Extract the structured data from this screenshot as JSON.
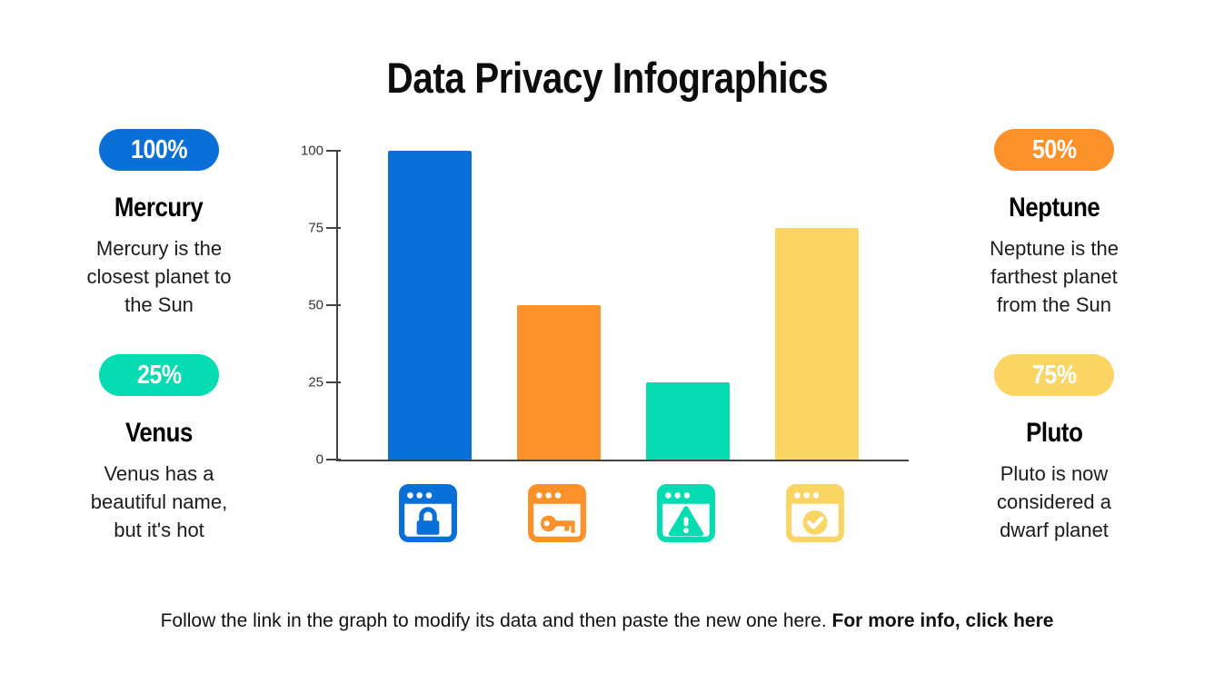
{
  "slide": {
    "title": "Data Privacy Infographics",
    "background": "#ffffff"
  },
  "stats": [
    {
      "percent": "100%",
      "pill_color": "#0a70d8",
      "name": "Mercury",
      "description": "Mercury is the closest planet to the Sun"
    },
    {
      "percent": "25%",
      "pill_color": "#06dcb2",
      "name": "Venus",
      "description": "Venus has a beautiful name, but it's hot"
    },
    {
      "percent": "50%",
      "pill_color": "#fb9129",
      "name": "Neptune",
      "description": "Neptune is the farthest planet from the Sun"
    },
    {
      "percent": "75%",
      "pill_color": "#fbd563",
      "name": "Pluto",
      "description": "Pluto is now considered a dwarf planet"
    }
  ],
  "chart_data": {
    "type": "bar",
    "categories": [
      "browser-lock",
      "browser-key",
      "browser-warning",
      "browser-check"
    ],
    "values": [
      100,
      50,
      25,
      75
    ],
    "bar_colors": [
      "#0a70d8",
      "#fb9129",
      "#06dcb2",
      "#fbd563"
    ],
    "yticks": [
      0,
      25,
      50,
      75,
      100
    ],
    "ylim": [
      0,
      100
    ],
    "grid": false,
    "axis_color": "#424242",
    "x_axis_icons": [
      "browser-lock-icon",
      "browser-key-icon",
      "browser-warning-icon",
      "browser-check-icon"
    ],
    "title": "",
    "xlabel": "",
    "ylabel": ""
  },
  "footer": {
    "text": "Follow the link in the graph to modify its data and then paste the new one here. ",
    "link_text": "For more info, click here"
  }
}
